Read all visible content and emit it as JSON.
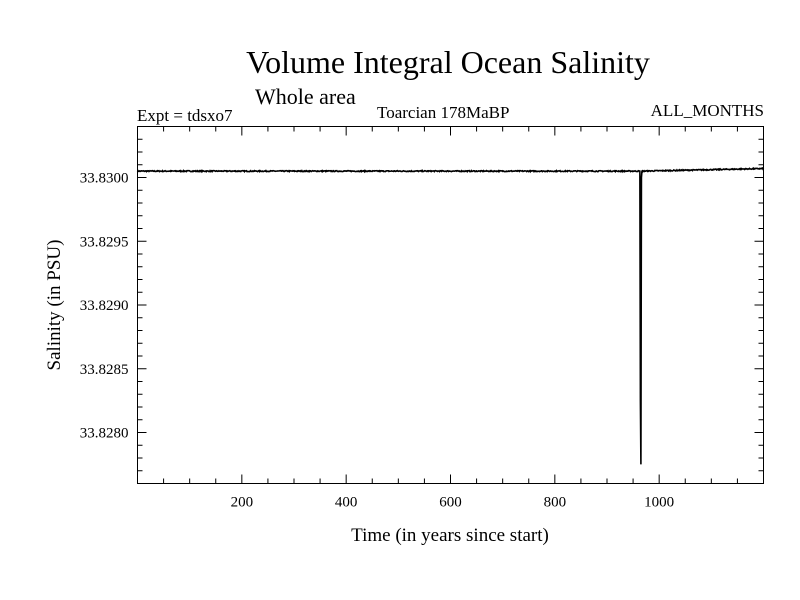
{
  "chart_data": {
    "type": "line",
    "title": "Volume Integral Ocean Salinity",
    "subtitle": "Whole area",
    "experiment": "Expt = tdsxo7",
    "period": "Toarcian 178MaBP",
    "months": "ALL_MONTHS",
    "xlabel": "Time (in years since start)",
    "ylabel": "Salinity (in PSU)",
    "xlim": [
      0,
      1200
    ],
    "ylim": [
      33.8276,
      33.8304
    ],
    "x_ticks": [
      200,
      400,
      600,
      800,
      1000
    ],
    "y_ticks": [
      33.828,
      33.8285,
      33.829,
      33.8295,
      33.83
    ],
    "x_tick_labels": [
      "200",
      "400",
      "600",
      "800",
      "1000"
    ],
    "y_tick_labels": [
      "33.8280",
      "33.8285",
      "33.8290",
      "33.8295",
      "33.8300"
    ],
    "series": [
      {
        "name": "salinity",
        "baseline": 33.83005,
        "noise": 4e-06,
        "x": [
          0,
          963,
          964,
          965,
          966,
          967,
          1200
        ],
        "values": [
          33.83005,
          33.83005,
          33.82825,
          33.82775,
          33.83,
          33.83005,
          33.83007
        ]
      }
    ]
  }
}
